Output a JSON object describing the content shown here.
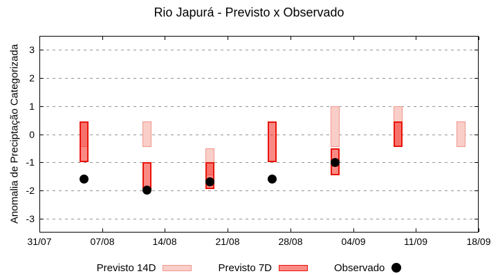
{
  "chart_data": {
    "type": "bar",
    "subtype": "ranged-category-bars-with-scatter",
    "title": "Rio Japurá - Previsto x Observado",
    "ylabel": "Anomalia de Preciptação Categorizada",
    "xlabel": "",
    "ylim": [
      -3.5,
      3.5
    ],
    "y_ticks": [
      3,
      2,
      1,
      0,
      -1,
      -2,
      -3
    ],
    "x_axis_days_span": 49,
    "x_ticks": [
      {
        "label": "31/07",
        "day": 0
      },
      {
        "label": "07/08",
        "day": 7
      },
      {
        "label": "14/08",
        "day": 14
      },
      {
        "label": "21/08",
        "day": 21
      },
      {
        "label": "28/08",
        "day": 28
      },
      {
        "label": "04/09",
        "day": 35
      },
      {
        "label": "11/09",
        "day": 42
      },
      {
        "label": "18/09",
        "day": 49
      }
    ],
    "grid": "horizontal-dashed",
    "grid_color": "#919191",
    "legend_position": "bottom-center",
    "legend": [
      "Previsto 14D",
      "Previsto 7D",
      "Observado"
    ],
    "series": [
      {
        "name": "Previsto 14D",
        "type": "range-bar",
        "fill": "#f9cec8",
        "border": "#f0968c",
        "ranges": [
          {
            "date": "05/08",
            "day": 5,
            "low": -0.45,
            "high": 0.45
          },
          {
            "date": "12/08",
            "day": 12,
            "low": -0.45,
            "high": 0.45
          },
          {
            "date": "19/08",
            "day": 19,
            "low": -1.45,
            "high": -0.5
          },
          {
            "date": "02/09",
            "day": 33,
            "low": -0.45,
            "high": 1.0
          },
          {
            "date": "09/09",
            "day": 40,
            "low": -0.45,
            "high": 1.0
          },
          {
            "date": "16/09",
            "day": 47,
            "low": -0.45,
            "high": 0.45
          }
        ]
      },
      {
        "name": "Previsto 7D",
        "type": "range-bar",
        "fill": "rgba(245,30,20,0.52)",
        "border": "#e81309",
        "ranges": [
          {
            "date": "05/08",
            "day": 5,
            "low": -1.0,
            "high": 0.45
          },
          {
            "date": "12/08",
            "day": 12,
            "low": -2.0,
            "high": -1.0
          },
          {
            "date": "19/08",
            "day": 19,
            "low": -1.95,
            "high": -1.0
          },
          {
            "date": "26/08",
            "day": 26,
            "low": -1.0,
            "high": 0.45
          },
          {
            "date": "02/09",
            "day": 33,
            "low": -1.45,
            "high": -0.5
          },
          {
            "date": "09/09",
            "day": 40,
            "low": -0.45,
            "high": 0.45
          }
        ]
      },
      {
        "name": "Observado",
        "type": "scatter",
        "color": "#000000",
        "points": [
          {
            "date": "05/08",
            "day": 5,
            "value": -1.6
          },
          {
            "date": "12/08",
            "day": 12,
            "value": -2.0
          },
          {
            "date": "19/08",
            "day": 19,
            "value": -1.7
          },
          {
            "date": "26/08",
            "day": 26,
            "value": -1.6
          },
          {
            "date": "02/09",
            "day": 33,
            "value": -1.0
          }
        ]
      }
    ]
  }
}
